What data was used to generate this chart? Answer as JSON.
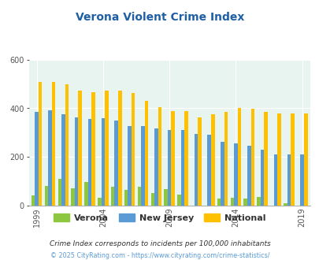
{
  "title": "Verona Violent Crime Index",
  "years": [
    1999,
    2000,
    2001,
    2002,
    2003,
    2004,
    2005,
    2006,
    2007,
    2008,
    2009,
    2010,
    2011,
    2012,
    2013,
    2014,
    2015,
    2016,
    2017,
    2018,
    2019
  ],
  "verona": [
    42,
    80,
    108,
    70,
    98,
    30,
    78,
    65,
    78,
    50,
    68,
    45,
    0,
    0,
    28,
    30,
    28,
    35,
    0,
    10,
    0
  ],
  "new_jersey": [
    385,
    392,
    375,
    362,
    357,
    358,
    350,
    328,
    328,
    317,
    310,
    310,
    295,
    290,
    263,
    257,
    245,
    230,
    210,
    210,
    210
  ],
  "national": [
    508,
    508,
    498,
    474,
    465,
    474,
    474,
    464,
    430,
    405,
    390,
    390,
    363,
    375,
    384,
    400,
    397,
    386,
    380,
    380,
    380
  ],
  "verona_color": "#8dc63f",
  "nj_color": "#5b9bd5",
  "national_color": "#ffc000",
  "bg_color": "#e8f4f0",
  "title_color": "#1f5fa6",
  "grid_color": "#ffffff",
  "subtitle": "Crime Index corresponds to incidents per 100,000 inhabitants",
  "footer": "© 2025 CityRating.com - https://www.cityrating.com/crime-statistics/",
  "ylim": [
    0,
    600
  ],
  "yticks": [
    0,
    200,
    400,
    600
  ],
  "xtick_years": [
    1999,
    2004,
    2009,
    2014,
    2019
  ]
}
